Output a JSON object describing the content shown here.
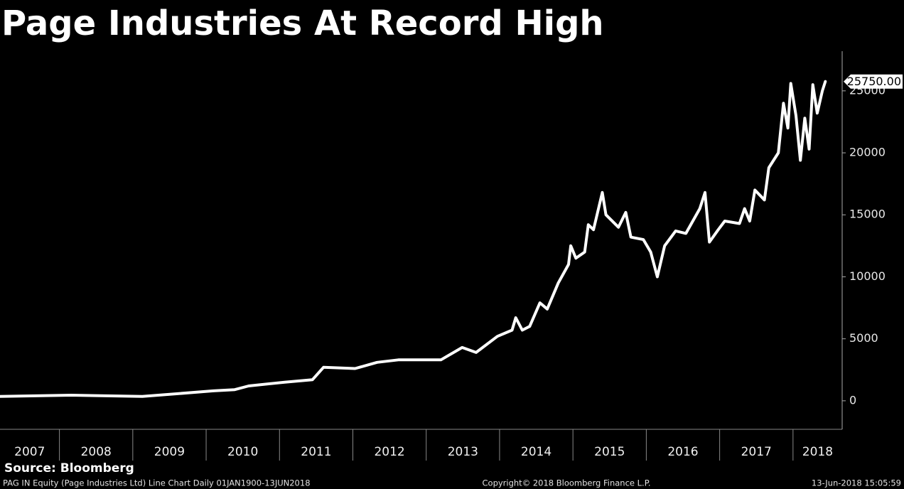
{
  "chart_data": {
    "type": "line",
    "title": "Page Industries At Record High",
    "categories": [
      "2007",
      "2008",
      "2009",
      "2010",
      "2011",
      "2012",
      "2013",
      "2014",
      "2015",
      "2016",
      "2017",
      "2018"
    ],
    "series": [
      {
        "name": "PAG IN Equity",
        "color": "#ffffff",
        "x": [
          2007.19,
          2008.16,
          2009.13,
          2010.1,
          2010.39,
          2010.58,
          2011.07,
          2011.45,
          2011.6,
          2012.03,
          2012.33,
          2012.62,
          2013.2,
          2013.49,
          2013.68,
          2013.97,
          2014.17,
          2014.22,
          2014.31,
          2014.41,
          2014.55,
          2014.65,
          2014.8,
          2014.94,
          2014.97,
          2015.04,
          2015.16,
          2015.21,
          2015.28,
          2015.4,
          2015.45,
          2015.62,
          2015.72,
          2015.79,
          2015.96,
          2016.06,
          2016.15,
          2016.25,
          2016.4,
          2016.54,
          2016.73,
          2016.8,
          2016.86,
          2016.98,
          2017.07,
          2017.27,
          2017.34,
          2017.41,
          2017.48,
          2017.61,
          2017.67,
          2017.8,
          2017.87,
          2017.93,
          2017.97,
          2018.04,
          2018.1,
          2018.16,
          2018.22,
          2018.27,
          2018.33,
          2018.4,
          2018.44
        ],
        "values": [
          350,
          450,
          350,
          800,
          900,
          1200,
          1500,
          1700,
          2700,
          2600,
          3100,
          3300,
          3300,
          4300,
          3900,
          5200,
          5700,
          6700,
          5700,
          6000,
          7900,
          7400,
          9500,
          11000,
          12500,
          11500,
          12000,
          14200,
          13800,
          16800,
          15000,
          14000,
          15200,
          13200,
          13000,
          12000,
          10000,
          12500,
          13700,
          13500,
          15500,
          16800,
          12800,
          13800,
          14500,
          14300,
          15500,
          14500,
          17000,
          16200,
          18800,
          20000,
          24000,
          22000,
          25600,
          23000,
          19400,
          22800,
          20300,
          25500,
          23200,
          25000,
          25750
        ]
      }
    ],
    "annotation": {
      "value": 25750,
      "label": "25750.00"
    },
    "xlim": [
      2007.19,
      2018.67
    ],
    "ylim": [
      -2300,
      28200
    ],
    "yticks": [
      0,
      5000,
      10000,
      15000,
      20000,
      25000
    ],
    "source": "Source: Bloomberg",
    "footer_left": "PAG IN Equity (Page Industries Ltd) Line Chart  Daily 01JAN1900-13JUN2018",
    "footer_center": "Copyright© 2018 Bloomberg Finance L.P.",
    "footer_right": "13-Jun-2018 15:05:59"
  }
}
